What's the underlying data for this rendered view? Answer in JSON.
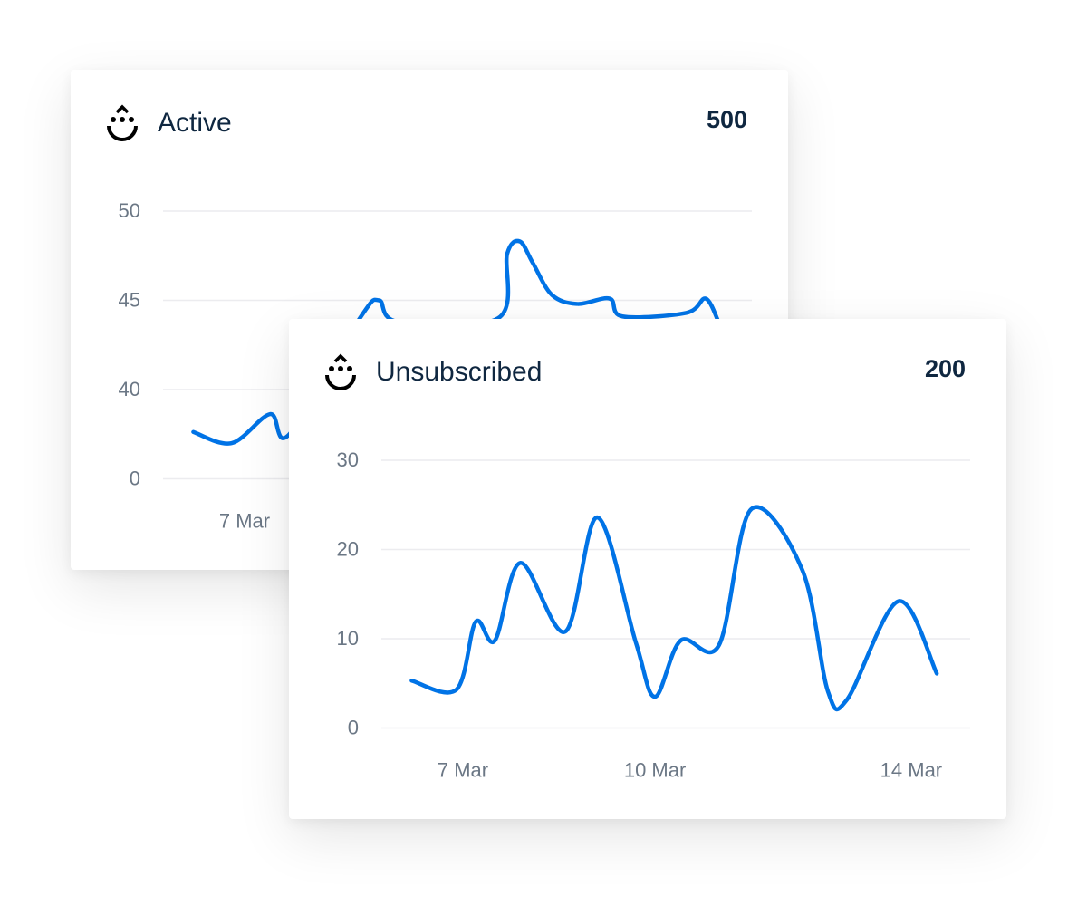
{
  "accent_color": "#0073e6",
  "cards": [
    {
      "title": "Active",
      "value": "500",
      "icon": "smiley-drop-logo-icon",
      "chart_data": {
        "type": "line",
        "y_ticks": [
          "50",
          "45",
          "40",
          "0"
        ],
        "y_tick_values": [
          50,
          45,
          40,
          0
        ],
        "x_ticks": [
          "7 Mar"
        ],
        "x_tick_values": [
          7
        ],
        "grid": true,
        "x": [
          6.2,
          6.8,
          7.4,
          7.7,
          8.8,
          9.1,
          9.4,
          10.96,
          11.1,
          11.3,
          11.5,
          11.8,
          12.2,
          12.7,
          12.9,
          13.9,
          14.2,
          14.4
        ],
        "values": [
          21,
          16,
          29,
          20,
          44,
          45,
          43.8,
          44,
          47.6,
          48.3,
          47.1,
          45.3,
          44.8,
          45.1,
          44.1,
          44.3,
          45.1,
          43.8
        ]
      }
    },
    {
      "title": "Unsubscribed",
      "value": "200",
      "icon": "smiley-drop-logo-icon",
      "chart_data": {
        "type": "line",
        "y_ticks": [
          "30",
          "20",
          "10",
          "0"
        ],
        "y_tick_values": [
          30,
          20,
          10,
          0
        ],
        "x_ticks": [
          "7 Mar",
          "10 Mar",
          "14 Mar"
        ],
        "x_tick_values": [
          7,
          10,
          14
        ],
        "grid": true,
        "x": [
          6.2,
          6.9,
          7.2,
          7.5,
          7.9,
          8.6,
          9.1,
          9.7,
          10.0,
          10.4,
          11.0,
          11.5,
          12.3,
          12.7,
          13.0,
          13.8,
          14.4
        ],
        "values": [
          5.3,
          4.3,
          11.9,
          9.8,
          18.5,
          10.8,
          23.6,
          9.6,
          3.5,
          9.8,
          9.3,
          24.5,
          17.7,
          4.1,
          3.2,
          14.2,
          6.1
        ]
      }
    }
  ]
}
